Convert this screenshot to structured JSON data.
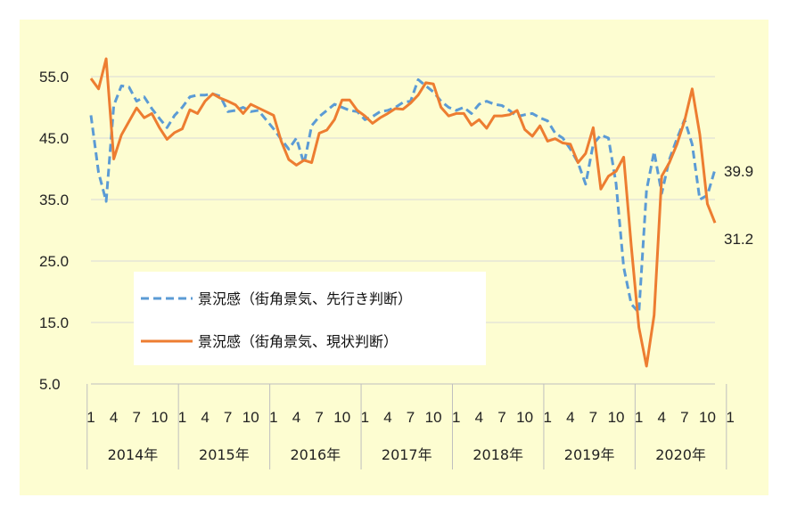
{
  "chart_data": {
    "type": "line",
    "ylim": [
      5,
      55
    ],
    "yticks": [
      "5.0",
      "15.0",
      "25.0",
      "35.0",
      "45.0",
      "55.0"
    ],
    "month_ticks": [
      "1",
      "4",
      "7",
      "10",
      "1",
      "4",
      "7",
      "10",
      "1",
      "4",
      "7",
      "10",
      "1",
      "4",
      "7",
      "10",
      "1",
      "4",
      "7",
      "10",
      "1",
      "4",
      "7",
      "10",
      "1",
      "4",
      "7",
      "10",
      "1"
    ],
    "years": [
      "2014年",
      "2015年",
      "2016年",
      "2017年",
      "2018年",
      "2019年",
      "2020年"
    ],
    "grid": "horizontal",
    "legend_position": "lower-left",
    "colors": {
      "forecast": "#5b9bd5",
      "current": "#ed7d31",
      "plot_bg": "#fdfdd1",
      "grid": "#d9d9d9"
    },
    "series": [
      {
        "name": "景況感（街角景気、先行き判断）",
        "style": "dashed",
        "end_label": "39.9",
        "values": [
          48.7,
          39.4,
          34.7,
          50.3,
          53.5,
          53.3,
          51.0,
          51.7,
          49.8,
          48.2,
          46.7,
          48.7,
          50.0,
          51.7,
          52.0,
          52.0,
          52.2,
          51.8,
          49.3,
          49.5,
          50.0,
          49.3,
          49.5,
          48.0,
          46.5,
          44.8,
          43.2,
          45.0,
          40.8,
          47.0,
          48.5,
          49.5,
          50.5,
          50.0,
          49.5,
          49.3,
          48.0,
          48.5,
          49.3,
          49.5,
          50.0,
          50.8,
          51.0,
          54.5,
          53.5,
          52.5,
          51.0,
          50.0,
          49.5,
          50.0,
          49.0,
          50.5,
          51.0,
          50.5,
          50.3,
          49.5,
          48.5,
          48.8,
          49.0,
          48.3,
          47.8,
          45.8,
          45.0,
          43.2,
          41.0,
          37.5,
          44.0,
          45.5,
          45.0,
          37.6,
          24.0,
          18.0,
          16.6,
          36.5,
          42.8,
          36.0,
          41.5,
          44.9,
          48.0,
          44.0,
          35.0,
          35.7,
          39.9
        ]
      },
      {
        "name": "景況感（街角景気、現状判断）",
        "style": "solid",
        "end_label": "31.2",
        "values": [
          54.7,
          53.0,
          57.9,
          41.6,
          45.5,
          47.7,
          49.9,
          48.3,
          49.0,
          46.7,
          44.8,
          45.9,
          46.5,
          49.6,
          49.0,
          51.0,
          52.2,
          51.5,
          51.0,
          50.4,
          49.0,
          50.5,
          49.9,
          49.3,
          48.7,
          44.5,
          41.5,
          40.6,
          41.4,
          41.0,
          45.8,
          46.3,
          48.0,
          51.2,
          51.2,
          49.5,
          48.6,
          47.4,
          48.3,
          49.0,
          49.8,
          49.7,
          50.7,
          52.0,
          54.0,
          53.8,
          50.0,
          48.6,
          49.0,
          49.0,
          47.1,
          48.0,
          46.6,
          48.6,
          48.6,
          48.8,
          49.5,
          46.4,
          45.3,
          47.0,
          44.5,
          44.9,
          44.2,
          44.0,
          41.0,
          42.5,
          46.7,
          36.7,
          38.8,
          39.6,
          41.9,
          27.4,
          14.2,
          7.9,
          16.2,
          38.8,
          41.0,
          44.0,
          47.8,
          53.0,
          45.6,
          34.3,
          31.2
        ]
      }
    ]
  }
}
